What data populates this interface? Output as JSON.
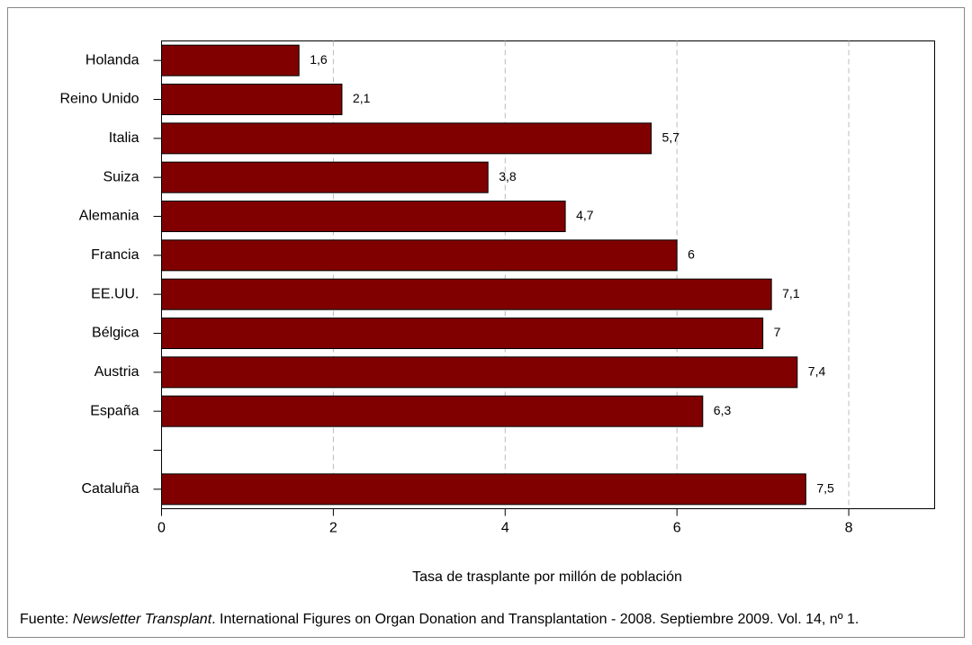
{
  "chart_data": {
    "type": "bar",
    "orientation": "horizontal",
    "categories": [
      "Holanda",
      "Reino Unido",
      "Italia",
      "Suiza",
      "Alemania",
      "Francia",
      "EE.UU.",
      "Bélgica",
      "Austria",
      "España",
      null,
      "Cataluña"
    ],
    "values": [
      1.6,
      2.1,
      5.7,
      3.8,
      4.7,
      6,
      7.1,
      7,
      7.4,
      6.3,
      null,
      7.5
    ],
    "value_labels": [
      "1,6",
      "2,1",
      "5,7",
      "3,8",
      "4,7",
      "6",
      "7,1",
      "7",
      "7,4",
      "6,3",
      null,
      "7,5"
    ],
    "color": "#800000",
    "xlim": [
      0,
      9
    ],
    "xticks": [
      0,
      2,
      4,
      6,
      8
    ],
    "grid": true,
    "xlabel": "Tasa de trasplante por millón de población"
  },
  "footer": {
    "prefix": "Fuente: ",
    "source": "Newsletter Transplant",
    "rest": ". International Figures on Organ Donation and Transplantation - 2008. Septiembre 2009. Vol. 14, nº 1."
  }
}
